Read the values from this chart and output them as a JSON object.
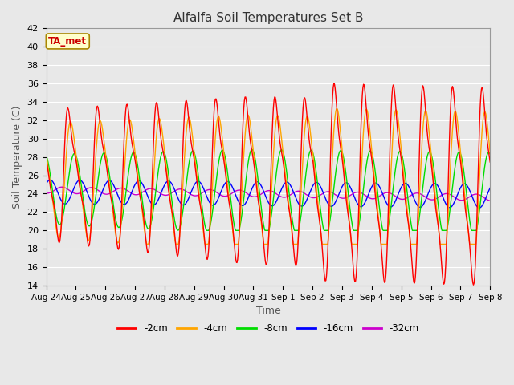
{
  "title": "Alfalfa Soil Temperatures Set B",
  "xlabel": "Time",
  "ylabel": "Soil Temperature (C)",
  "ylim": [
    14,
    42
  ],
  "yticks": [
    14,
    16,
    18,
    20,
    22,
    24,
    26,
    28,
    30,
    32,
    34,
    36,
    38,
    40,
    42
  ],
  "x_labels": [
    "Aug 24",
    "Aug 25",
    "Aug 26",
    "Aug 27",
    "Aug 28",
    "Aug 29",
    "Aug 30",
    "Aug 31",
    "Sep 1",
    "Sep 2",
    "Sep 3",
    "Sep 4",
    "Sep 5",
    "Sep 6",
    "Sep 7",
    "Sep 8"
  ],
  "colors": {
    "-2cm": "#FF0000",
    "-4cm": "#FFA500",
    "-8cm": "#00DD00",
    "-16cm": "#0000FF",
    "-32cm": "#CC00CC"
  },
  "annotation_text": "TA_met",
  "annotation_bg": "#FFFFCC",
  "annotation_border": "#AA8800",
  "bg_color": "#E8E8E8",
  "grid_color": "#FFFFFF",
  "n_days": 15,
  "ppd": 48
}
